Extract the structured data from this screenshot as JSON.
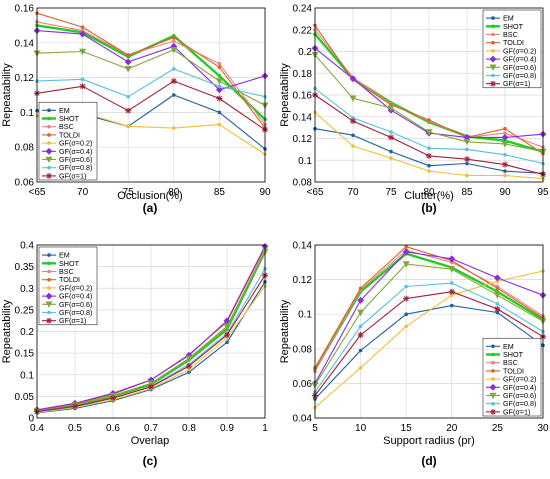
{
  "chart_data": [
    {
      "type": "line",
      "caption": "(a)",
      "xlabel": "Occlusion(%)",
      "ylabel": "Repeatability",
      "x": [
        "<65",
        "70",
        "75",
        "80",
        "85",
        "90"
      ],
      "ylim": [
        0.06,
        0.16
      ],
      "yticks": [
        0.06,
        0.08,
        0.1,
        0.12,
        0.14,
        0.16
      ],
      "grid": true,
      "legend_position": "bottom-left",
      "series": [
        {
          "name": "EM",
          "color": "#1f5fa6",
          "marker": "dot",
          "values": [
            0.101,
            0.099,
            0.092,
            0.11,
            0.1,
            0.079
          ]
        },
        {
          "name": "SHOT",
          "color": "#22cc22",
          "marker": "dot",
          "bold": true,
          "values": [
            0.15,
            0.146,
            0.132,
            0.144,
            0.121,
            0.096
          ]
        },
        {
          "name": "BSC",
          "color": "#f08080",
          "marker": "dot",
          "values": [
            0.152,
            0.147,
            0.133,
            0.141,
            0.128,
            0.093
          ]
        },
        {
          "name": "TOLDI",
          "color": "#d9622b",
          "marker": "dot",
          "values": [
            0.157,
            0.149,
            0.133,
            0.143,
            0.126,
            0.091
          ]
        },
        {
          "name": "GF(σ=0.2)",
          "color": "#f2c037",
          "marker": "dot",
          "values": [
            0.098,
            0.1,
            0.092,
            0.091,
            0.093,
            0.076
          ]
        },
        {
          "name": "GF(σ=0.4)",
          "color": "#8a2be2",
          "marker": "diamond",
          "values": [
            0.147,
            0.145,
            0.129,
            0.138,
            0.113,
            0.121
          ]
        },
        {
          "name": "GF(σ=0.6)",
          "color": "#7fa83a",
          "marker": "triangle",
          "values": [
            0.134,
            0.135,
            0.125,
            0.136,
            0.118,
            0.104
          ]
        },
        {
          "name": "GF(σ=0.8)",
          "color": "#5bc0de",
          "marker": "dot",
          "values": [
            0.118,
            0.119,
            0.109,
            0.125,
            0.115,
            0.109
          ]
        },
        {
          "name": "GF(σ=1)",
          "color": "#a21e3c",
          "marker": "star",
          "values": [
            0.111,
            0.115,
            0.101,
            0.118,
            0.108,
            0.09
          ]
        }
      ]
    },
    {
      "type": "line",
      "caption": "(b)",
      "xlabel": "Clutter(%)",
      "ylabel": "Repeatability",
      "x": [
        "<65",
        "70",
        "75",
        "80",
        "85",
        "90",
        "95"
      ],
      "ylim": [
        0.08,
        0.24
      ],
      "yticks": [
        0.08,
        0.1,
        0.12,
        0.14,
        0.16,
        0.18,
        0.2,
        0.22,
        0.24
      ],
      "grid": true,
      "legend_position": "top-right",
      "series": [
        {
          "name": "EM",
          "color": "#1f5fa6",
          "marker": "dot",
          "values": [
            0.129,
            0.123,
            0.108,
            0.095,
            0.097,
            0.09,
            0.088
          ]
        },
        {
          "name": "SHOT",
          "color": "#22cc22",
          "marker": "dot",
          "bold": true,
          "values": [
            0.216,
            0.175,
            0.153,
            0.135,
            0.122,
            0.118,
            0.108
          ]
        },
        {
          "name": "BSC",
          "color": "#f08080",
          "marker": "dot",
          "values": [
            0.22,
            0.176,
            0.152,
            0.136,
            0.121,
            0.125,
            0.112
          ]
        },
        {
          "name": "TOLDI",
          "color": "#d9622b",
          "marker": "dot",
          "values": [
            0.224,
            0.174,
            0.151,
            0.137,
            0.121,
            0.129,
            0.106
          ]
        },
        {
          "name": "GF(σ=0.2)",
          "color": "#f2c037",
          "marker": "dot",
          "values": [
            0.144,
            0.113,
            0.102,
            0.09,
            0.086,
            0.086,
            0.083
          ]
        },
        {
          "name": "GF(σ=0.4)",
          "color": "#8a2be2",
          "marker": "diamond",
          "values": [
            0.203,
            0.175,
            0.146,
            0.125,
            0.121,
            0.121,
            0.124
          ]
        },
        {
          "name": "GF(σ=0.6)",
          "color": "#7fa83a",
          "marker": "triangle",
          "values": [
            0.197,
            0.157,
            0.148,
            0.126,
            0.117,
            0.115,
            0.108
          ]
        },
        {
          "name": "GF(σ=0.8)",
          "color": "#5bc0de",
          "marker": "dot",
          "values": [
            0.166,
            0.139,
            0.126,
            0.111,
            0.11,
            0.105,
            0.097
          ]
        },
        {
          "name": "GF(σ=1)",
          "color": "#a21e3c",
          "marker": "star",
          "values": [
            0.16,
            0.136,
            0.121,
            0.104,
            0.101,
            0.096,
            0.087
          ]
        }
      ]
    },
    {
      "type": "line",
      "caption": "(c)",
      "xlabel": "Overlap",
      "ylabel": "Repeatability",
      "x": [
        0.4,
        0.5,
        0.6,
        0.7,
        0.8,
        0.9,
        1.0
      ],
      "xticks": [
        "0.4",
        "0.5",
        "0.6",
        "0.7",
        "0.8",
        "0.9",
        "1"
      ],
      "ylim": [
        0,
        0.4
      ],
      "yticks": [
        0,
        0.05,
        0.1,
        0.15,
        0.2,
        0.25,
        0.3,
        0.35,
        0.4
      ],
      "grid": true,
      "legend_position": "top-left",
      "series": [
        {
          "name": "EM",
          "color": "#1f5fa6",
          "marker": "dot",
          "values": [
            0.012,
            0.022,
            0.04,
            0.066,
            0.106,
            0.175,
            0.315
          ]
        },
        {
          "name": "SHOT",
          "color": "#22cc22",
          "marker": "dot",
          "bold": true,
          "values": [
            0.016,
            0.03,
            0.05,
            0.078,
            0.134,
            0.205,
            0.385
          ]
        },
        {
          "name": "BSC",
          "color": "#f08080",
          "marker": "dot",
          "values": [
            0.017,
            0.031,
            0.051,
            0.08,
            0.137,
            0.21,
            0.39
          ]
        },
        {
          "name": "TOLDI",
          "color": "#d9622b",
          "marker": "dot",
          "values": [
            0.018,
            0.033,
            0.055,
            0.088,
            0.147,
            0.222,
            0.395
          ]
        },
        {
          "name": "GF(σ=0.2)",
          "color": "#f2c037",
          "marker": "dot",
          "values": [
            0.013,
            0.024,
            0.042,
            0.068,
            0.112,
            0.185,
            0.305
          ]
        },
        {
          "name": "GF(σ=0.4)",
          "color": "#8a2be2",
          "marker": "diamond",
          "values": [
            0.019,
            0.034,
            0.057,
            0.088,
            0.145,
            0.225,
            0.397
          ]
        },
        {
          "name": "GF(σ=0.6)",
          "color": "#7fa83a",
          "marker": "triangle",
          "values": [
            0.016,
            0.03,
            0.052,
            0.08,
            0.138,
            0.212,
            0.385
          ]
        },
        {
          "name": "GF(σ=0.8)",
          "color": "#5bc0de",
          "marker": "dot",
          "values": [
            0.014,
            0.026,
            0.046,
            0.073,
            0.124,
            0.195,
            0.345
          ]
        },
        {
          "name": "GF(σ=1)",
          "color": "#a21e3c",
          "marker": "star",
          "values": [
            0.015,
            0.027,
            0.046,
            0.072,
            0.12,
            0.192,
            0.33
          ]
        }
      ]
    },
    {
      "type": "line",
      "caption": "(d)",
      "xlabel": "Support radius (pr)",
      "ylabel": "Repeatability",
      "x": [
        5,
        10,
        15,
        20,
        25,
        30
      ],
      "ylim": [
        0.04,
        0.14
      ],
      "yticks": [
        0.04,
        0.06,
        0.08,
        0.1,
        0.12,
        0.14
      ],
      "grid": true,
      "legend_position": "bottom-right",
      "series": [
        {
          "name": "EM",
          "color": "#1f5fa6",
          "marker": "dot",
          "values": [
            0.051,
            0.079,
            0.1,
            0.105,
            0.101,
            0.082
          ]
        },
        {
          "name": "SHOT",
          "color": "#22cc22",
          "marker": "dot",
          "bold": true,
          "values": [
            0.068,
            0.113,
            0.135,
            0.127,
            0.113,
            0.097
          ]
        },
        {
          "name": "BSC",
          "color": "#f08080",
          "marker": "dot",
          "values": [
            0.067,
            0.114,
            0.137,
            0.13,
            0.116,
            0.099
          ]
        },
        {
          "name": "TOLDI",
          "color": "#d9622b",
          "marker": "dot",
          "values": [
            0.069,
            0.115,
            0.139,
            0.131,
            0.115,
            0.098
          ]
        },
        {
          "name": "GF(σ=0.2)",
          "color": "#f2c037",
          "marker": "dot",
          "values": [
            0.046,
            0.069,
            0.093,
            0.111,
            0.119,
            0.125
          ]
        },
        {
          "name": "GF(σ=0.4)",
          "color": "#8a2be2",
          "marker": "diamond",
          "values": [
            0.06,
            0.108,
            0.136,
            0.132,
            0.121,
            0.111
          ]
        },
        {
          "name": "GF(σ=0.6)",
          "color": "#7fa83a",
          "marker": "triangle",
          "values": [
            0.059,
            0.101,
            0.129,
            0.126,
            0.111,
            0.096
          ]
        },
        {
          "name": "GF(σ=0.8)",
          "color": "#5bc0de",
          "marker": "dot",
          "values": [
            0.055,
            0.093,
            0.116,
            0.118,
            0.106,
            0.09
          ]
        },
        {
          "name": "GF(σ=1)",
          "color": "#a21e3c",
          "marker": "star",
          "values": [
            0.053,
            0.088,
            0.109,
            0.113,
            0.103,
            0.087
          ]
        }
      ]
    }
  ]
}
